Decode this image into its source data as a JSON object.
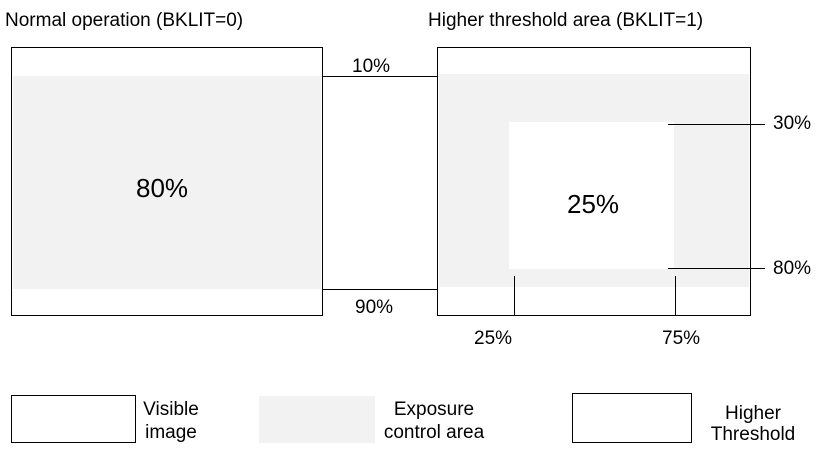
{
  "titles": {
    "left": "Normal operation (BKLIT=0)",
    "right": "Higher  threshold area (BKLIT=1)"
  },
  "left_panel": {
    "center_value": "80%",
    "top_label": "10%",
    "bottom_label": "90%"
  },
  "right_panel": {
    "center_value": "25%",
    "right_top_label": "30%",
    "right_bottom_label": "80%",
    "bottom_left_label": "25%",
    "bottom_right_label": "75%"
  },
  "legend": {
    "visible_line1": "Visible",
    "visible_line2": "image",
    "exposure_line1": "Exposure",
    "exposure_line2": "control area",
    "higher_line1": "Higher",
    "higher_line2": "Threshold"
  },
  "colors": {
    "exposure_fill": "#f2f2f2",
    "outline": "#000000",
    "background": "#ffffff"
  }
}
